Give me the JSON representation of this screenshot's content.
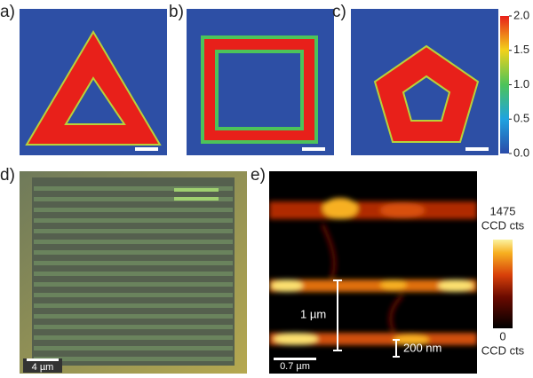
{
  "panels": {
    "a": "a)",
    "b": "b)",
    "c": "c)",
    "d": "d)",
    "e": "e)"
  },
  "colorbar_top": {
    "lim": [
      0,
      2
    ],
    "ticks": [
      {
        "value": 0,
        "label": "0.0"
      },
      {
        "value": 0.5,
        "label": "0.5"
      },
      {
        "value": 1,
        "label": "1.0"
      },
      {
        "value": 1.5,
        "label": "1.5"
      },
      {
        "value": 2,
        "label": "2.0"
      }
    ]
  },
  "colorbar_e": {
    "max": 1475,
    "min": 0,
    "max_unit": "CCD cts",
    "min_unit": "CCD cts"
  },
  "scale_bars": {
    "d": "4 µm",
    "e": "0.7 µm",
    "spacing": "1 µm",
    "linewidth": "200 nm"
  }
}
